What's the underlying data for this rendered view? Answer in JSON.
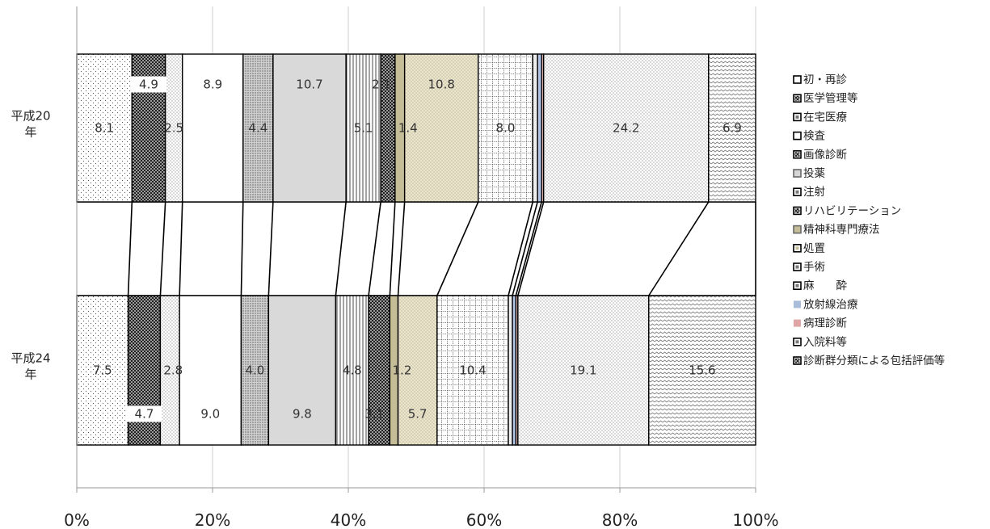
{
  "chart_data": {
    "type": "bar",
    "stacked": "100%",
    "orientation": "horizontal",
    "categories": [
      "平成20年",
      "平成24年"
    ],
    "xlim": [
      0,
      100
    ],
    "x_ticks": [
      "0%",
      "20%",
      "40%",
      "60%",
      "80%",
      "100%"
    ],
    "grid": true,
    "legend_position": "right",
    "series": [
      {
        "name": "初・再診",
        "values": [
          8.1,
          7.5
        ],
        "labels": [
          "8.1",
          "7.5"
        ],
        "pattern": "dots-sparse",
        "color": "#ffffff"
      },
      {
        "name": "医学管理等",
        "values": [
          4.9,
          4.7
        ],
        "labels": [
          "4.9",
          "4.7"
        ],
        "pattern": "check-dark",
        "color": "#555555"
      },
      {
        "name": "在宅医療",
        "values": [
          2.5,
          2.8
        ],
        "labels": [
          "2.5",
          "2.8"
        ],
        "pattern": "dots-fine",
        "color": "#ffffff"
      },
      {
        "name": "検査",
        "values": [
          8.9,
          9.0
        ],
        "labels": [
          "8.9",
          "9.0"
        ],
        "pattern": "solid",
        "color": "#ffffff"
      },
      {
        "name": "画像診断",
        "values": [
          4.4,
          4.0
        ],
        "labels": [
          "4.4",
          "4.0"
        ],
        "pattern": "dots-dense",
        "color": "#cccccc"
      },
      {
        "name": "投薬",
        "values": [
          10.7,
          9.8
        ],
        "labels": [
          "10.7",
          "9.8"
        ],
        "pattern": "solid",
        "color": "#d9d9d9"
      },
      {
        "name": "注射",
        "values": [
          5.1,
          4.8
        ],
        "labels": [
          "5.1",
          "4.8"
        ],
        "pattern": "vlines",
        "color": "#ffffff"
      },
      {
        "name": "リハビリテーション",
        "values": [
          2.1,
          3.1
        ],
        "labels": [
          "2.1",
          "3.1"
        ],
        "pattern": "check-dark",
        "color": "#6a6a6a"
      },
      {
        "name": "精神科専門療法",
        "values": [
          1.4,
          1.2
        ],
        "labels": [
          "1.4",
          "1.2"
        ],
        "pattern": "solid",
        "color": "#c4bd97"
      },
      {
        "name": "処置",
        "values": [
          10.8,
          5.7
        ],
        "labels": [
          "10.8",
          "5.7"
        ],
        "pattern": "dots-tan",
        "color": "#ece7d4"
      },
      {
        "name": "手術",
        "values": [
          8.0,
          10.4
        ],
        "labels": [
          "8.0",
          "10.4"
        ],
        "pattern": "grid",
        "color": "#ffffff"
      },
      {
        "name": "麻酔",
        "values": [
          0.7,
          0.6
        ],
        "labels": [
          "",
          ""
        ],
        "pattern": "solid",
        "color": "#eeeeee"
      },
      {
        "name": "放射線治療",
        "values": [
          0.6,
          0.5
        ],
        "labels": [
          "",
          ""
        ],
        "pattern": "solid",
        "color": "#b4c6e7"
      },
      {
        "name": "病理診断",
        "values": [
          0.3,
          0.3
        ],
        "labels": [
          "",
          ""
        ],
        "pattern": "solid",
        "color": "#e6b9b8"
      },
      {
        "name": "入院料等",
        "values": [
          24.2,
          19.1
        ],
        "labels": [
          "24.2",
          "19.1"
        ],
        "pattern": "dots-fine",
        "color": "#ffffff"
      },
      {
        "name": "診断群分類による包括評価等",
        "values": [
          6.9,
          15.6
        ],
        "labels": [
          "6.9",
          "15.6"
        ],
        "pattern": "waves",
        "color": "#ffffff"
      }
    ]
  },
  "legend": {
    "items": [
      {
        "label": "初・再診",
        "swatch": "outline"
      },
      {
        "label": "医学管理等",
        "swatch": "check"
      },
      {
        "label": "在宅医療",
        "swatch": "outline-dot"
      },
      {
        "label": "検査",
        "swatch": "outline-light"
      },
      {
        "label": "画像診断",
        "swatch": "check"
      },
      {
        "label": "投薬",
        "swatch": "gray"
      },
      {
        "label": "注射",
        "swatch": "outline-dot"
      },
      {
        "label": "リハビリテーション",
        "swatch": "check"
      },
      {
        "label": "精神科専門療法",
        "swatch": "tan"
      },
      {
        "label": "処置",
        "swatch": "outline-tan"
      },
      {
        "label": "手術",
        "swatch": "outline-dot"
      },
      {
        "label": "麻　　酔",
        "swatch": "outline-dot"
      },
      {
        "label": "放射線治療",
        "swatch": "blue"
      },
      {
        "label": "病理診断",
        "swatch": "pink"
      },
      {
        "label": "入院料等",
        "swatch": "outline-dot"
      },
      {
        "label": "診断群分類による包括評価等",
        "swatch": "check"
      }
    ]
  }
}
